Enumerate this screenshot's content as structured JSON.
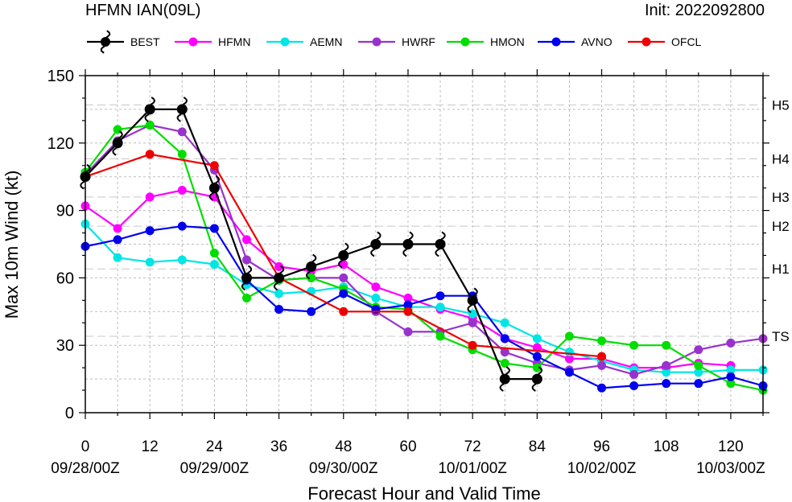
{
  "chart_data": {
    "type": "line",
    "title_left": "HFMN IAN(09L)",
    "title_right": "Init: 2022092800",
    "xlabel": "Forecast Hour and Valid Time",
    "ylabel": "Max 10m Wind (kt)",
    "xlim": [
      0,
      126
    ],
    "ylim": [
      0,
      150
    ],
    "xticks": [
      0,
      12,
      24,
      36,
      48,
      60,
      72,
      84,
      96,
      108,
      120
    ],
    "yticks": [
      0,
      30,
      60,
      90,
      120,
      150
    ],
    "date_labels": [
      {
        "x": 0,
        "label": "09/28/00Z"
      },
      {
        "x": 24,
        "label": "09/29/00Z"
      },
      {
        "x": 48,
        "label": "09/30/00Z"
      },
      {
        "x": 72,
        "label": "10/01/00Z"
      },
      {
        "x": 96,
        "label": "10/02/00Z"
      },
      {
        "x": 120,
        "label": "10/03/00Z"
      }
    ],
    "intensity_categories": [
      {
        "label": "TS",
        "value": 34
      },
      {
        "label": "H1",
        "value": 64
      },
      {
        "label": "H2",
        "value": 83
      },
      {
        "label": "H3",
        "value": 96
      },
      {
        "label": "H4",
        "value": 113
      },
      {
        "label": "H5",
        "value": 137
      }
    ],
    "grid": true,
    "legend_position": "top",
    "series": [
      {
        "name": "BEST",
        "color": "#000000",
        "marker": "hurricane",
        "x": [
          0,
          6,
          12,
          18,
          24,
          30,
          36,
          42,
          48,
          54,
          60,
          66,
          72,
          78,
          84
        ],
        "y": [
          105,
          120,
          135,
          135,
          100,
          60,
          60,
          65,
          70,
          75,
          75,
          75,
          50,
          15,
          15
        ]
      },
      {
        "name": "HFMN",
        "color": "#ff00ff",
        "marker": "circle",
        "x": [
          0,
          6,
          12,
          18,
          24,
          30,
          36,
          42,
          48,
          54,
          60,
          66,
          72,
          78,
          84,
          90,
          96,
          102,
          108,
          114,
          120
        ],
        "y": [
          92,
          82,
          96,
          99,
          96,
          77,
          65,
          63,
          66,
          56,
          51,
          46,
          42,
          33,
          29,
          24,
          24,
          20,
          20,
          22,
          21
        ]
      },
      {
        "name": "AEMN",
        "color": "#00e5e5",
        "marker": "circle",
        "x": [
          0,
          6,
          12,
          18,
          24,
          30,
          36,
          42,
          48,
          54,
          60,
          66,
          72,
          78,
          84,
          90,
          96,
          102,
          108,
          114,
          120,
          126
        ],
        "y": [
          84,
          69,
          67,
          68,
          66,
          57,
          53,
          54,
          56,
          51,
          47,
          47,
          44,
          40,
          33,
          27,
          23,
          19,
          18,
          18,
          19,
          19
        ]
      },
      {
        "name": "HWRF",
        "color": "#9932cc",
        "marker": "circle",
        "x": [
          0,
          6,
          12,
          18,
          24,
          30,
          36,
          42,
          48,
          54,
          60,
          66,
          72,
          78,
          84,
          90,
          96,
          102,
          108,
          114,
          120,
          126
        ],
        "y": [
          106,
          121,
          128,
          125,
          108,
          68,
          59,
          60,
          60,
          45,
          36,
          36,
          40,
          27,
          22,
          19,
          21,
          17,
          21,
          28,
          31,
          33
        ]
      },
      {
        "name": "HMON",
        "color": "#00dd00",
        "marker": "circle",
        "x": [
          0,
          6,
          12,
          18,
          24,
          30,
          36,
          42,
          48,
          54,
          60,
          66,
          72,
          78,
          84,
          90,
          96,
          102,
          108,
          114,
          120,
          126
        ],
        "y": [
          107,
          126,
          128,
          115,
          71,
          51,
          59,
          60,
          55,
          47,
          46,
          34,
          28,
          22,
          20,
          34,
          32,
          30,
          30,
          21,
          13,
          10
        ]
      },
      {
        "name": "AVNO",
        "color": "#0000ee",
        "marker": "circle",
        "x": [
          0,
          6,
          12,
          18,
          24,
          30,
          36,
          42,
          48,
          54,
          60,
          66,
          72,
          78,
          84,
          90,
          96,
          102,
          108,
          114,
          120,
          126
        ],
        "y": [
          74,
          77,
          81,
          83,
          82,
          59,
          46,
          45,
          53,
          46,
          48,
          52,
          52,
          33,
          25,
          18,
          11,
          12,
          13,
          13,
          16,
          12
        ]
      },
      {
        "name": "OFCL",
        "color": "#ee0000",
        "marker": "circle",
        "x": [
          0,
          12,
          24,
          36,
          48,
          60,
          72,
          96
        ],
        "y": [
          105,
          115,
          110,
          60,
          45,
          45,
          30,
          25
        ]
      }
    ]
  }
}
